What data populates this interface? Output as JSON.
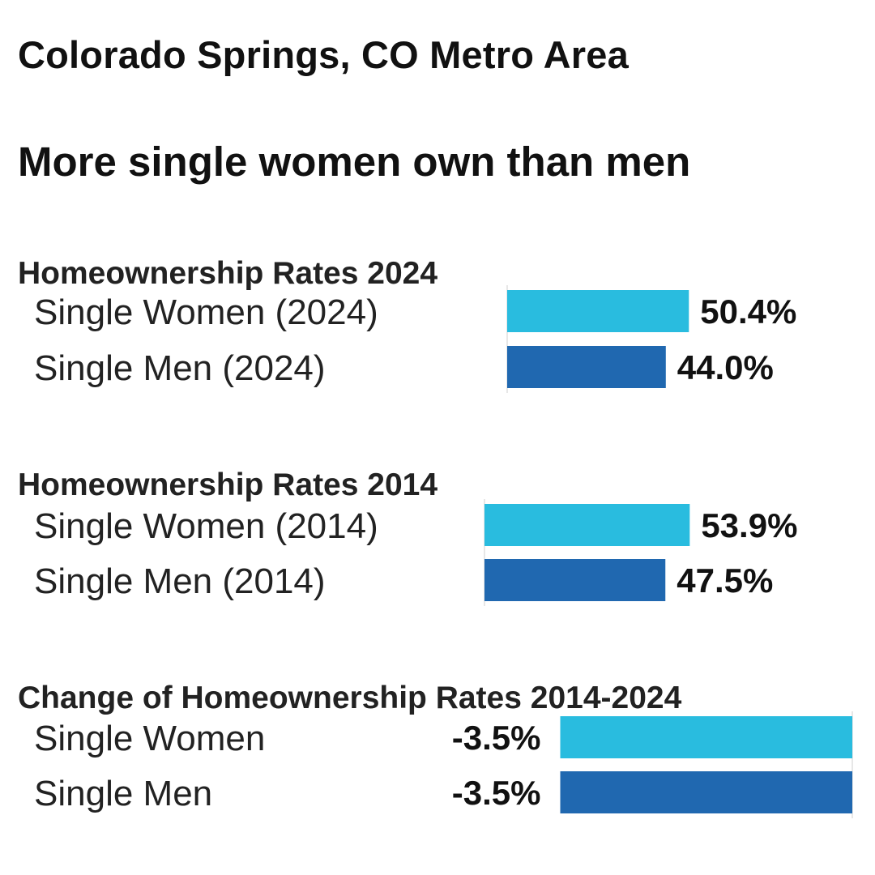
{
  "title": "Colorado Springs, CO Metro Area",
  "subtitle": "More single women own than men",
  "colors": {
    "women": "#29BCDF",
    "men": "#2068B0"
  },
  "chart_data": [
    {
      "type": "bar",
      "orientation": "horizontal",
      "title": "Homeownership Rates 2024",
      "categories": [
        "Single Women (2024)",
        "Single Men (2024)"
      ],
      "values": [
        50.4,
        44.0
      ],
      "value_labels": [
        "50.4%",
        "44.0%"
      ],
      "unit": "%"
    },
    {
      "type": "bar",
      "orientation": "horizontal",
      "title": "Homeownership Rates 2014",
      "categories": [
        "Single Women (2014)",
        "Single Men (2014)"
      ],
      "values": [
        53.9,
        47.5
      ],
      "value_labels": [
        "53.9%",
        "47.5%"
      ],
      "unit": "%"
    },
    {
      "type": "bar",
      "orientation": "horizontal",
      "title": "Change of Homeownership Rates 2014-2024",
      "categories": [
        "Single Women",
        "Single Men"
      ],
      "values": [
        -3.5,
        -3.5
      ],
      "value_labels": [
        "-3.5%",
        "-3.5%"
      ],
      "unit": "%"
    }
  ]
}
